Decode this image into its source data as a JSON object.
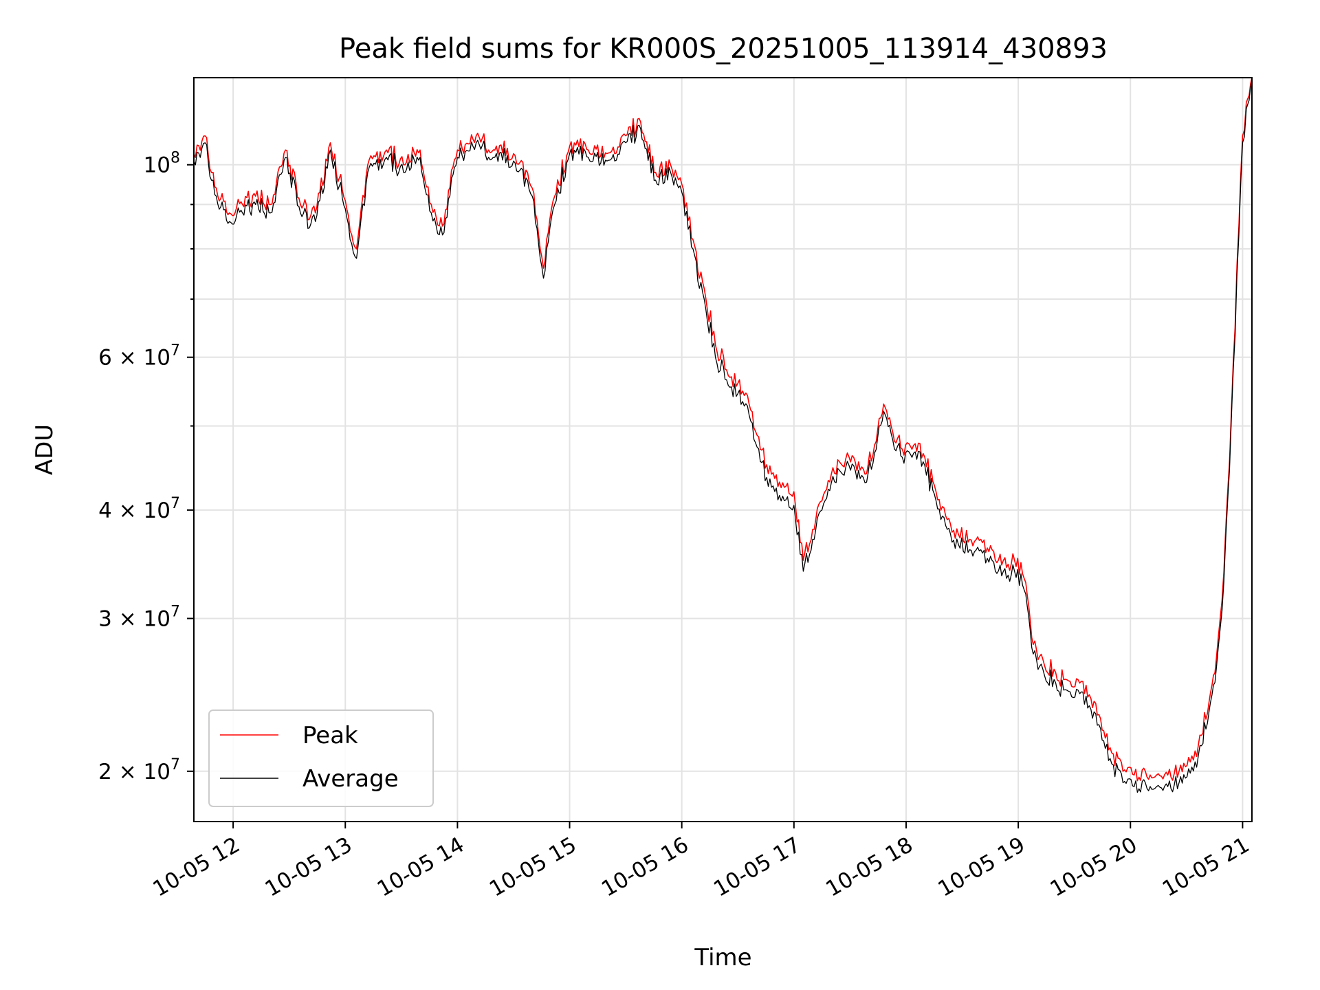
{
  "chart_data": {
    "type": "line",
    "title": "Peak field sums for KR000S_20251005_113914_430893",
    "xlabel": "Time",
    "ylabel": "ADU",
    "y_scale": "log",
    "grid": true,
    "legend_position": "lower-left",
    "xlim": [
      "2025-10-05 11:39",
      "2025-10-05 21:05"
    ],
    "ylim": [
      17500000,
      126000000
    ],
    "x_ticks": [
      {
        "t": "2025-10-05 12:00",
        "label": "10-05 12"
      },
      {
        "t": "2025-10-05 13:00",
        "label": "10-05 13"
      },
      {
        "t": "2025-10-05 14:00",
        "label": "10-05 14"
      },
      {
        "t": "2025-10-05 15:00",
        "label": "10-05 15"
      },
      {
        "t": "2025-10-05 16:00",
        "label": "10-05 16"
      },
      {
        "t": "2025-10-05 17:00",
        "label": "10-05 17"
      },
      {
        "t": "2025-10-05 18:00",
        "label": "10-05 18"
      },
      {
        "t": "2025-10-05 19:00",
        "label": "10-05 19"
      },
      {
        "t": "2025-10-05 20:00",
        "label": "10-05 20"
      },
      {
        "t": "2025-10-05 21:00",
        "label": "10-05 21"
      }
    ],
    "y_major_ticks": [
      {
        "value": 20000000,
        "base": "2 × 10",
        "exp": "7"
      },
      {
        "value": 30000000,
        "base": "3 × 10",
        "exp": "7"
      },
      {
        "value": 40000000,
        "base": "4 × 10",
        "exp": "7"
      },
      {
        "value": 60000000,
        "base": "6 × 10",
        "exp": "7"
      },
      {
        "value": 100000000,
        "base": "10",
        "exp": "8"
      }
    ],
    "y_minor_gridlines": [
      50000000,
      70000000,
      80000000,
      90000000
    ],
    "series": [
      {
        "name": "Peak",
        "color": "#ff0000",
        "points": [
          [
            "2025-10-05 11:39",
            103000000
          ],
          [
            "2025-10-05 11:45",
            108000000
          ],
          [
            "2025-10-05 11:51",
            94000000
          ],
          [
            "2025-10-05 11:58",
            88000000
          ],
          [
            "2025-10-05 12:05",
            90000000
          ],
          [
            "2025-10-05 12:12",
            92000000
          ],
          [
            "2025-10-05 12:20",
            90000000
          ],
          [
            "2025-10-05 12:28",
            104000000
          ],
          [
            "2025-10-05 12:36",
            90000000
          ],
          [
            "2025-10-05 12:44",
            88000000
          ],
          [
            "2025-10-05 12:52",
            106000000
          ],
          [
            "2025-10-05 13:00",
            91000000
          ],
          [
            "2025-10-05 13:06",
            80000000
          ],
          [
            "2025-10-05 13:12",
            100000000
          ],
          [
            "2025-10-05 13:22",
            104000000
          ],
          [
            "2025-10-05 13:32",
            100000000
          ],
          [
            "2025-10-05 13:40",
            104000000
          ],
          [
            "2025-10-05 13:46",
            90000000
          ],
          [
            "2025-10-05 13:52",
            85000000
          ],
          [
            "2025-10-05 14:00",
            104000000
          ],
          [
            "2025-10-05 14:10",
            108000000
          ],
          [
            "2025-10-05 14:20",
            104000000
          ],
          [
            "2025-10-05 14:30",
            103000000
          ],
          [
            "2025-10-05 14:40",
            94000000
          ],
          [
            "2025-10-05 14:46",
            76000000
          ],
          [
            "2025-10-05 14:52",
            92000000
          ],
          [
            "2025-10-05 15:00",
            105000000
          ],
          [
            "2025-10-05 15:10",
            104000000
          ],
          [
            "2025-10-05 15:20",
            103000000
          ],
          [
            "2025-10-05 15:30",
            108000000
          ],
          [
            "2025-10-05 15:38",
            112000000
          ],
          [
            "2025-10-05 15:46",
            98000000
          ],
          [
            "2025-10-05 15:54",
            100000000
          ],
          [
            "2025-10-05 16:00",
            95000000
          ],
          [
            "2025-10-05 16:06",
            82000000
          ],
          [
            "2025-10-05 16:12",
            72000000
          ],
          [
            "2025-10-05 16:18",
            62000000
          ],
          [
            "2025-10-05 16:24",
            58000000
          ],
          [
            "2025-10-05 16:30",
            56000000
          ],
          [
            "2025-10-05 16:36",
            53000000
          ],
          [
            "2025-10-05 16:42",
            47000000
          ],
          [
            "2025-10-05 16:48",
            44000000
          ],
          [
            "2025-10-05 16:54",
            43000000
          ],
          [
            "2025-10-05 17:00",
            42000000
          ],
          [
            "2025-10-05 17:05",
            35000000
          ],
          [
            "2025-10-05 17:10",
            38000000
          ],
          [
            "2025-10-05 17:15",
            41000000
          ],
          [
            "2025-10-05 17:20",
            44000000
          ],
          [
            "2025-10-05 17:26",
            45000000
          ],
          [
            "2025-10-05 17:32",
            46000000
          ],
          [
            "2025-10-05 17:38",
            44000000
          ],
          [
            "2025-10-05 17:44",
            48000000
          ],
          [
            "2025-10-05 17:48",
            53000000
          ],
          [
            "2025-10-05 17:52",
            50000000
          ],
          [
            "2025-10-05 17:58",
            47000000
          ],
          [
            "2025-10-05 18:04",
            47500000
          ],
          [
            "2025-10-05 18:10",
            46000000
          ],
          [
            "2025-10-05 18:16",
            42000000
          ],
          [
            "2025-10-05 18:22",
            39000000
          ],
          [
            "2025-10-05 18:28",
            37500000
          ],
          [
            "2025-10-05 18:34",
            37000000
          ],
          [
            "2025-10-05 18:40",
            37000000
          ],
          [
            "2025-10-05 18:46",
            36000000
          ],
          [
            "2025-10-05 18:52",
            35000000
          ],
          [
            "2025-10-05 18:58",
            35000000
          ],
          [
            "2025-10-05 19:04",
            33000000
          ],
          [
            "2025-10-05 19:08",
            28000000
          ],
          [
            "2025-10-05 19:14",
            26500000
          ],
          [
            "2025-10-05 19:20",
            26000000
          ],
          [
            "2025-10-05 19:26",
            25500000
          ],
          [
            "2025-10-05 19:32",
            25500000
          ],
          [
            "2025-10-05 19:38",
            24500000
          ],
          [
            "2025-10-05 19:44",
            23000000
          ],
          [
            "2025-10-05 19:50",
            21000000
          ],
          [
            "2025-10-05 19:56",
            20000000
          ],
          [
            "2025-10-05 20:02",
            19800000
          ],
          [
            "2025-10-05 20:08",
            20000000
          ],
          [
            "2025-10-05 20:14",
            19800000
          ],
          [
            "2025-10-05 20:20",
            19800000
          ],
          [
            "2025-10-05 20:26",
            20000000
          ],
          [
            "2025-10-05 20:32",
            20500000
          ],
          [
            "2025-10-05 20:38",
            22000000
          ],
          [
            "2025-10-05 20:42",
            24000000
          ],
          [
            "2025-10-05 20:46",
            27000000
          ],
          [
            "2025-10-05 20:48",
            30000000
          ],
          [
            "2025-10-05 20:50",
            34000000
          ],
          [
            "2025-10-05 20:52",
            42000000
          ],
          [
            "2025-10-05 20:54",
            52000000
          ],
          [
            "2025-10-05 20:56",
            65000000
          ],
          [
            "2025-10-05 20:58",
            85000000
          ],
          [
            "2025-10-05 21:00",
            108000000
          ],
          [
            "2025-10-05 21:02",
            118000000
          ],
          [
            "2025-10-05 21:05",
            126000000
          ]
        ]
      },
      {
        "name": "Average",
        "color": "#000000",
        "points": [
          [
            "2025-10-05 11:39",
            101000000
          ],
          [
            "2025-10-05 11:45",
            106000000
          ],
          [
            "2025-10-05 11:51",
            92000000
          ],
          [
            "2025-10-05 11:58",
            86000000
          ],
          [
            "2025-10-05 12:05",
            88000000
          ],
          [
            "2025-10-05 12:12",
            90000000
          ],
          [
            "2025-10-05 12:20",
            88000000
          ],
          [
            "2025-10-05 12:28",
            102000000
          ],
          [
            "2025-10-05 12:36",
            88000000
          ],
          [
            "2025-10-05 12:44",
            86000000
          ],
          [
            "2025-10-05 12:52",
            104000000
          ],
          [
            "2025-10-05 13:00",
            89000000
          ],
          [
            "2025-10-05 13:06",
            78000000
          ],
          [
            "2025-10-05 13:12",
            98000000
          ],
          [
            "2025-10-05 13:22",
            102000000
          ],
          [
            "2025-10-05 13:32",
            98000000
          ],
          [
            "2025-10-05 13:40",
            102000000
          ],
          [
            "2025-10-05 13:46",
            88000000
          ],
          [
            "2025-10-05 13:52",
            83000000
          ],
          [
            "2025-10-05 14:00",
            102000000
          ],
          [
            "2025-10-05 14:10",
            106000000
          ],
          [
            "2025-10-05 14:20",
            102000000
          ],
          [
            "2025-10-05 14:30",
            101000000
          ],
          [
            "2025-10-05 14:40",
            92000000
          ],
          [
            "2025-10-05 14:46",
            74000000
          ],
          [
            "2025-10-05 14:52",
            90000000
          ],
          [
            "2025-10-05 15:00",
            103000000
          ],
          [
            "2025-10-05 15:10",
            102000000
          ],
          [
            "2025-10-05 15:20",
            101000000
          ],
          [
            "2025-10-05 15:30",
            106000000
          ],
          [
            "2025-10-05 15:38",
            110000000
          ],
          [
            "2025-10-05 15:46",
            96000000
          ],
          [
            "2025-10-05 15:54",
            98000000
          ],
          [
            "2025-10-05 16:00",
            93000000
          ],
          [
            "2025-10-05 16:06",
            80000000
          ],
          [
            "2025-10-05 16:12",
            70000000
          ],
          [
            "2025-10-05 16:18",
            60000000
          ],
          [
            "2025-10-05 16:24",
            56500000
          ],
          [
            "2025-10-05 16:30",
            54500000
          ],
          [
            "2025-10-05 16:36",
            51500000
          ],
          [
            "2025-10-05 16:42",
            45500000
          ],
          [
            "2025-10-05 16:48",
            42500000
          ],
          [
            "2025-10-05 16:54",
            41500000
          ],
          [
            "2025-10-05 17:00",
            40500000
          ],
          [
            "2025-10-05 17:05",
            34000000
          ],
          [
            "2025-10-05 17:10",
            37000000
          ],
          [
            "2025-10-05 17:15",
            40000000
          ],
          [
            "2025-10-05 17:20",
            43000000
          ],
          [
            "2025-10-05 17:26",
            44000000
          ],
          [
            "2025-10-05 17:32",
            45000000
          ],
          [
            "2025-10-05 17:38",
            43000000
          ],
          [
            "2025-10-05 17:44",
            47000000
          ],
          [
            "2025-10-05 17:48",
            52000000
          ],
          [
            "2025-10-05 17:52",
            49000000
          ],
          [
            "2025-10-05 17:58",
            46000000
          ],
          [
            "2025-10-05 18:04",
            46500000
          ],
          [
            "2025-10-05 18:10",
            45000000
          ],
          [
            "2025-10-05 18:16",
            41000000
          ],
          [
            "2025-10-05 18:22",
            38000000
          ],
          [
            "2025-10-05 18:28",
            36500000
          ],
          [
            "2025-10-05 18:34",
            36000000
          ],
          [
            "2025-10-05 18:40",
            36000000
          ],
          [
            "2025-10-05 18:46",
            35000000
          ],
          [
            "2025-10-05 18:52",
            34000000
          ],
          [
            "2025-10-05 18:58",
            34000000
          ],
          [
            "2025-10-05 19:04",
            32000000
          ],
          [
            "2025-10-05 19:08",
            27300000
          ],
          [
            "2025-10-05 19:14",
            25800000
          ],
          [
            "2025-10-05 19:20",
            25300000
          ],
          [
            "2025-10-05 19:26",
            24800000
          ],
          [
            "2025-10-05 19:32",
            24800000
          ],
          [
            "2025-10-05 19:38",
            23800000
          ],
          [
            "2025-10-05 19:44",
            22400000
          ],
          [
            "2025-10-05 19:50",
            20400000
          ],
          [
            "2025-10-05 19:56",
            19400000
          ],
          [
            "2025-10-05 20:02",
            19200000
          ],
          [
            "2025-10-05 20:08",
            19400000
          ],
          [
            "2025-10-05 20:14",
            19200000
          ],
          [
            "2025-10-05 20:20",
            19200000
          ],
          [
            "2025-10-05 20:26",
            19400000
          ],
          [
            "2025-10-05 20:32",
            19900000
          ],
          [
            "2025-10-05 20:38",
            21400000
          ],
          [
            "2025-10-05 20:42",
            23400000
          ],
          [
            "2025-10-05 20:46",
            26300000
          ],
          [
            "2025-10-05 20:48",
            29200000
          ],
          [
            "2025-10-05 20:50",
            33100000
          ],
          [
            "2025-10-05 20:52",
            41000000
          ],
          [
            "2025-10-05 20:54",
            51000000
          ],
          [
            "2025-10-05 20:56",
            63500000
          ],
          [
            "2025-10-05 20:58",
            83000000
          ],
          [
            "2025-10-05 21:00",
            106000000
          ],
          [
            "2025-10-05 21:02",
            116000000
          ],
          [
            "2025-10-05 21:05",
            125000000
          ]
        ]
      }
    ]
  }
}
